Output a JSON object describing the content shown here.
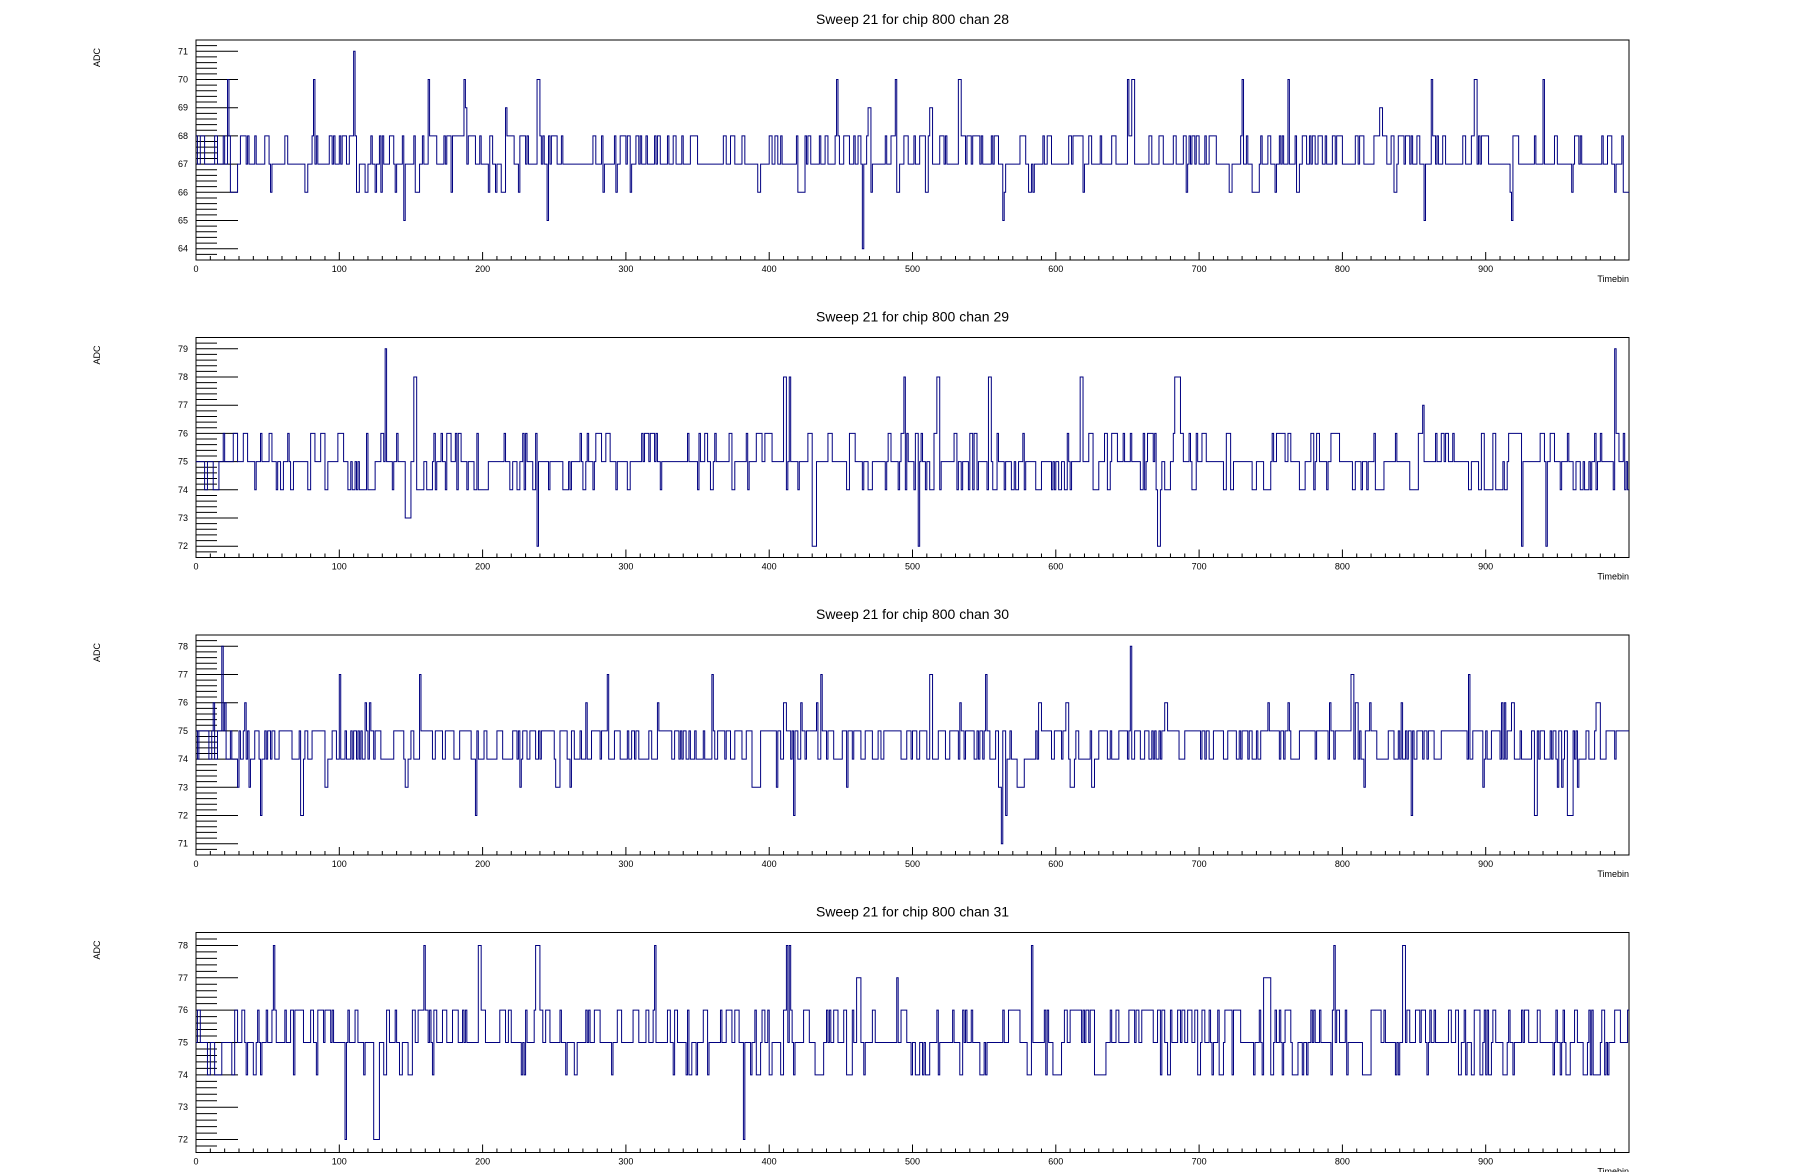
{
  "colors": {
    "trace": "#000080",
    "frame": "#000000",
    "background": "#ffffff"
  },
  "chart_data": [
    {
      "type": "line",
      "title": "Sweep 21 for chip 800 chan 28",
      "xlabel": "Timebin",
      "ylabel": "ADC",
      "xlim": [
        0,
        1000
      ],
      "ylim": [
        63.6,
        71.4
      ],
      "xticks": [
        0,
        100,
        200,
        300,
        400,
        500,
        600,
        700,
        800,
        900
      ],
      "yticks": [
        64,
        65,
        66,
        67,
        68,
        69,
        70,
        71
      ],
      "baseline": 67.3,
      "spread": 0.9,
      "seed": 28,
      "spikes": [
        [
          110,
          71
        ],
        [
          465,
          64
        ],
        [
          145,
          65
        ],
        [
          245,
          65
        ],
        [
          563,
          65
        ],
        [
          857,
          65
        ],
        [
          918,
          65
        ],
        [
          22,
          70
        ],
        [
          82,
          70
        ],
        [
          162,
          70
        ],
        [
          187,
          70
        ],
        [
          238,
          70
        ],
        [
          447,
          70
        ],
        [
          488,
          70
        ],
        [
          532,
          70
        ],
        [
          650,
          70
        ],
        [
          653,
          70
        ],
        [
          730,
          70
        ],
        [
          762,
          70
        ],
        [
          862,
          70
        ],
        [
          892,
          70
        ],
        [
          940,
          70
        ]
      ],
      "grid": false
    },
    {
      "type": "line",
      "title": "Sweep 21 for chip 800 chan 29",
      "xlabel": "Timebin",
      "ylabel": "ADC",
      "xlim": [
        0,
        1000
      ],
      "ylim": [
        71.6,
        79.4
      ],
      "xticks": [
        0,
        100,
        200,
        300,
        400,
        500,
        600,
        700,
        800,
        900
      ],
      "yticks": [
        72,
        73,
        74,
        75,
        76,
        77,
        78,
        79
      ],
      "baseline": 75.0,
      "spread": 0.95,
      "seed": 29,
      "spikes": [
        [
          132,
          79
        ],
        [
          990,
          79
        ],
        [
          152,
          78
        ],
        [
          410,
          78
        ],
        [
          414,
          78
        ],
        [
          494,
          78
        ],
        [
          518,
          78
        ],
        [
          517,
          78
        ],
        [
          553,
          78
        ],
        [
          617,
          78
        ],
        [
          683,
          78
        ],
        [
          1000,
          78
        ],
        [
          238,
          72
        ],
        [
          430,
          72
        ],
        [
          504,
          72
        ],
        [
          671,
          72
        ],
        [
          925,
          72
        ],
        [
          942,
          72
        ]
      ],
      "grid": false
    },
    {
      "type": "line",
      "title": "Sweep 21 for chip 800 chan 30",
      "xlabel": "Timebin",
      "ylabel": "ADC",
      "xlim": [
        0,
        1000
      ],
      "ylim": [
        70.6,
        78.4
      ],
      "xticks": [
        0,
        100,
        200,
        300,
        400,
        500,
        600,
        700,
        800,
        900
      ],
      "yticks": [
        71,
        72,
        73,
        74,
        75,
        76,
        77,
        78
      ],
      "baseline": 74.6,
      "spread": 0.9,
      "seed": 30,
      "spikes": [
        [
          652,
          78
        ],
        [
          18,
          78
        ],
        [
          562,
          71
        ],
        [
          45,
          72
        ],
        [
          73,
          72
        ],
        [
          195,
          72
        ],
        [
          417,
          72
        ],
        [
          565,
          72
        ],
        [
          848,
          72
        ],
        [
          934,
          72
        ],
        [
          957,
          72
        ],
        [
          100,
          77
        ],
        [
          156,
          77
        ],
        [
          287,
          77
        ],
        [
          360,
          77
        ],
        [
          436,
          77
        ],
        [
          512,
          77
        ],
        [
          551,
          77
        ],
        [
          806,
          77
        ],
        [
          888,
          77
        ],
        [
          1000,
          77
        ]
      ],
      "grid": false
    },
    {
      "type": "line",
      "title": "Sweep 21 for chip 800 chan 31",
      "xlabel": "Timebin",
      "ylabel": "ADC",
      "xlim": [
        0,
        1000
      ],
      "ylim": [
        71.6,
        78.4
      ],
      "xticks": [
        0,
        100,
        200,
        300,
        400,
        500,
        600,
        700,
        800,
        900
      ],
      "yticks": [
        72,
        73,
        74,
        75,
        76,
        77,
        78
      ],
      "baseline": 75.1,
      "spread": 1.0,
      "seed": 31,
      "spikes": [
        [
          54,
          78
        ],
        [
          159,
          78
        ],
        [
          197,
          78
        ],
        [
          237,
          78
        ],
        [
          320,
          78
        ],
        [
          412,
          78
        ],
        [
          414,
          78
        ],
        [
          583,
          78
        ],
        [
          794,
          78
        ],
        [
          842,
          78
        ],
        [
          104,
          72
        ],
        [
          124,
          72
        ],
        [
          382,
          72
        ]
      ],
      "grid": false
    }
  ]
}
